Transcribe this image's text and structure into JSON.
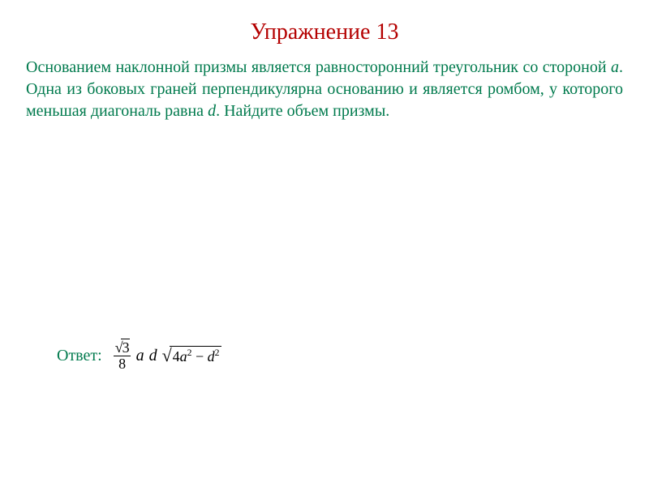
{
  "title": {
    "text": "Упражнение 13",
    "color": "#b40000",
    "fontsize_pt": 28
  },
  "problem": {
    "color": "#007a4d",
    "fontsize_pt": 20,
    "text_plain": "Основанием наклонной призмы является равносторонний треугольник со стороной a. Одна из боковых граней перпендикулярна основанию и является ромбом, у которого меньшая диагональ равна d. Найдите объем призмы.",
    "text_pre_a": "Основанием наклонной призмы является равносторонний треугольник со стороной ",
    "var_a": "a",
    "text_mid": ". Одна из боковых граней перпендикулярна основанию и является ромбом, у которого меньшая диагональ равна ",
    "var_d": "d",
    "text_post": ". Найдите объем призмы."
  },
  "answer": {
    "label": "Ответ:",
    "label_color": "#007a4d",
    "formula_color": "#000000",
    "formula_plain": "(√3 / 8) · a · d · √(4a² − d²)",
    "frac_num_sqrt": "3",
    "frac_den": "8",
    "var_a": "a",
    "var_d": "d",
    "rad_coef": "4",
    "rad_a": "a",
    "rad_a_pow": "2",
    "rad_minus": " − ",
    "rad_d": "d",
    "rad_d_pow": "2"
  },
  "styling": {
    "background_color": "#ffffff",
    "font_family": "Times New Roman"
  }
}
